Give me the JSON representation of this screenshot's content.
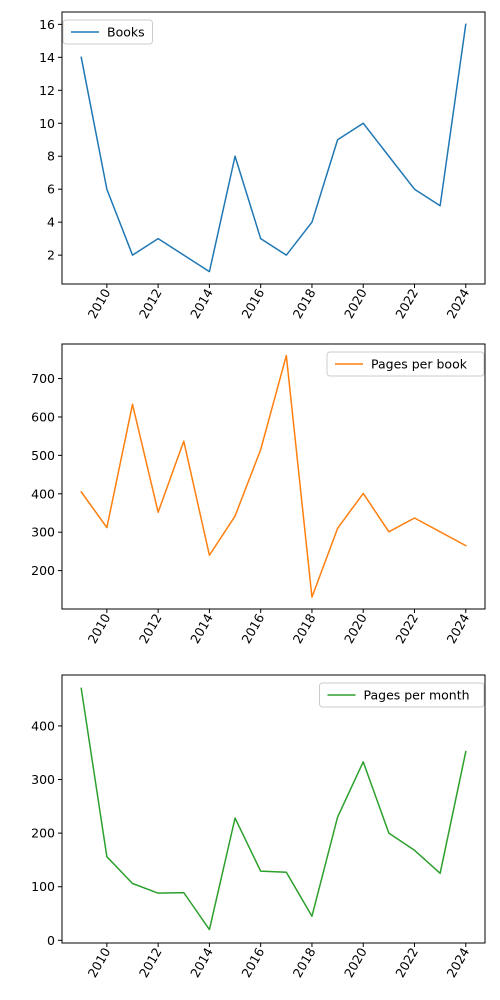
{
  "chart_data": [
    {
      "type": "line",
      "x": [
        2009,
        2010,
        2011,
        2012,
        2013,
        2014,
        2015,
        2016,
        2017,
        2018,
        2019,
        2020,
        2021,
        2022,
        2023,
        2024
      ],
      "series": [
        {
          "name": "Books",
          "color": "#1f77b4",
          "values": [
            14,
            6,
            2,
            3,
            2,
            1,
            8,
            3,
            2,
            4,
            9,
            10,
            8,
            6,
            5,
            16
          ]
        }
      ],
      "xticks": [
        "2010",
        "2012",
        "2014",
        "2016",
        "2018",
        "2020",
        "2022",
        "2024"
      ],
      "yticks": [
        "2",
        "4",
        "6",
        "8",
        "10",
        "12",
        "14",
        "16"
      ],
      "xlim": [
        2008.25,
        2024.75
      ],
      "ylim": [
        0.25,
        16.75
      ],
      "legend": "upper left",
      "title": "",
      "xlabel": "",
      "ylabel": ""
    },
    {
      "type": "line",
      "x": [
        2009,
        2010,
        2011,
        2012,
        2013,
        2014,
        2015,
        2016,
        2017,
        2018,
        2019,
        2020,
        2021,
        2022,
        2023,
        2024
      ],
      "series": [
        {
          "name": "Pages per book",
          "color": "#ff7f0e",
          "values": [
            405,
            312,
            633,
            352,
            537,
            240,
            342,
            515,
            760,
            131,
            310,
            401,
            301,
            337,
            301,
            265
          ]
        }
      ],
      "xticks": [
        "2010",
        "2012",
        "2014",
        "2016",
        "2018",
        "2020",
        "2022",
        "2024"
      ],
      "yticks": [
        "200",
        "300",
        "400",
        "500",
        "600",
        "700"
      ],
      "xlim": [
        2008.25,
        2024.75
      ],
      "ylim": [
        100,
        790
      ],
      "legend": "upper right",
      "title": "",
      "xlabel": "",
      "ylabel": ""
    },
    {
      "type": "line",
      "x": [
        2009,
        2010,
        2011,
        2012,
        2013,
        2014,
        2015,
        2016,
        2017,
        2018,
        2019,
        2020,
        2021,
        2022,
        2023,
        2024
      ],
      "series": [
        {
          "name": "Pages per month",
          "color": "#2ca02c",
          "values": [
            470,
            156,
            106,
            88,
            89,
            20,
            228,
            129,
            127,
            45,
            230,
            333,
            200,
            168,
            125,
            352
          ]
        }
      ],
      "xticks": [
        "2010",
        "2012",
        "2014",
        "2016",
        "2018",
        "2020",
        "2022",
        "2024"
      ],
      "yticks": [
        "0",
        "100",
        "200",
        "300",
        "400"
      ],
      "xlim": [
        2008.25,
        2024.75
      ],
      "ylim": [
        -5,
        495
      ],
      "legend": "upper right",
      "title": "",
      "xlabel": "",
      "ylabel": ""
    }
  ]
}
